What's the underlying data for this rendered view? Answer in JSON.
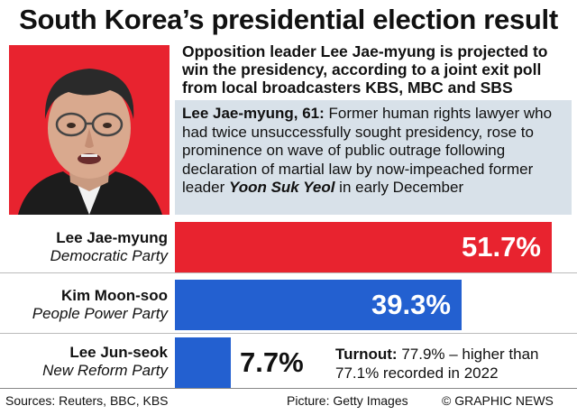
{
  "title": "South Korea’s presidential election result",
  "lead": "Opposition leader Lee Jae-myung is projected to win the presidency, according to a joint exit poll from local broadcasters KBS, MBC and SBS",
  "bio": {
    "name": "Lee Jae-myung, 61:",
    "text": " Former human rights lawyer who had twice unsuccessfully sought presidency, rose to prominence on wave of public outrage following declaration of martial law by now-impeached former leader ",
    "emphasis": "Yoon Suk Yeol",
    "tail": " in early December"
  },
  "colors": {
    "red": "#e8232f",
    "blue": "#2360d0",
    "bio_bg": "#d8e1e9"
  },
  "chart_data": {
    "type": "bar",
    "orientation": "horizontal",
    "categories": [
      "Lee Jae-myung",
      "Kim Moon-soo",
      "Lee Jun-seok"
    ],
    "parties": [
      "Democratic Party",
      "People Power Party",
      "New Reform Party"
    ],
    "values": [
      51.7,
      39.3,
      7.7
    ],
    "value_labels": [
      "51.7%",
      "39.3%",
      "7.7%"
    ],
    "bar_colors": [
      "#e8232f",
      "#2360d0",
      "#2360d0"
    ],
    "unit": "%"
  },
  "turnout": {
    "label": "Turnout:",
    "text": " 77.9% – higher than 77.1% recorded in 2022"
  },
  "footer": {
    "sources": "Sources: Reuters, BBC, KBS",
    "picture": "Picture: Getty Images",
    "credit": "© GRAPHIC NEWS"
  }
}
